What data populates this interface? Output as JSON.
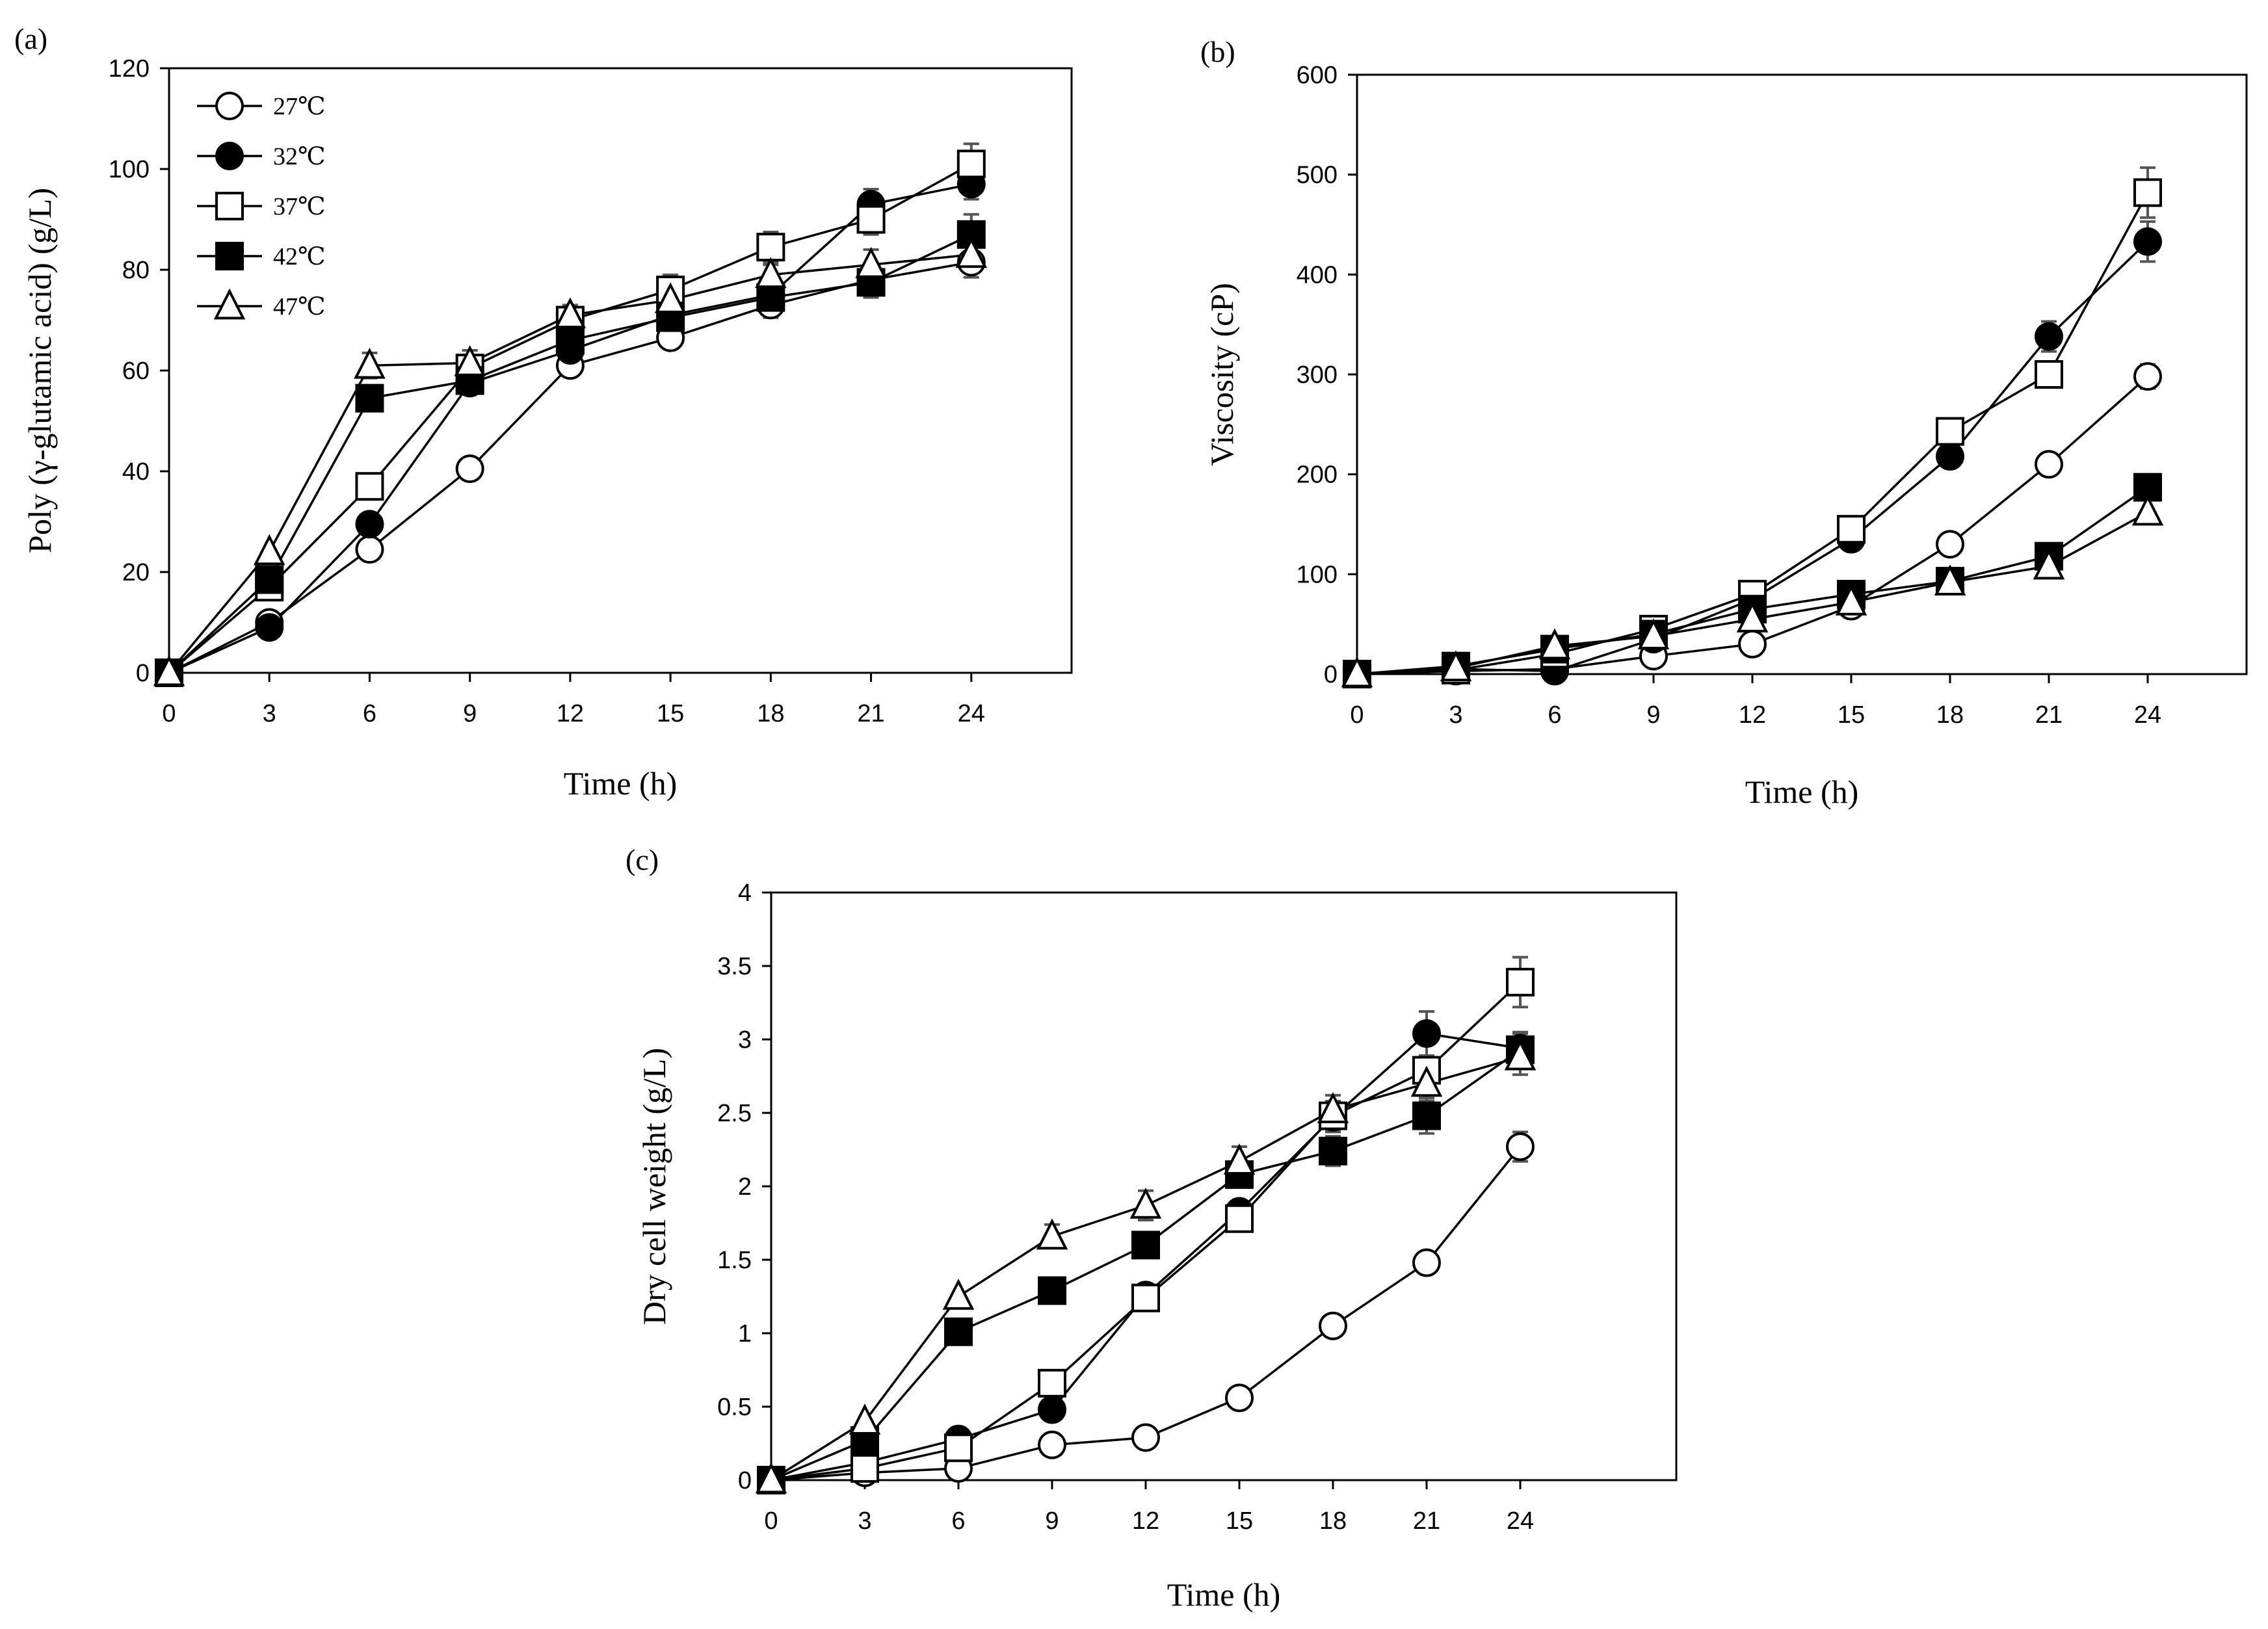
{
  "chart_data": [
    {
      "panel": "(a)",
      "type": "line",
      "title": "",
      "xlabel": "Time (h)",
      "ylabel": "Poly (γ-glutamic acid)  (g/L)",
      "x": [
        0,
        3,
        6,
        9,
        12,
        15,
        18,
        21,
        24
      ],
      "xticks": [
        "0",
        "3",
        "6",
        "9",
        "12",
        "15",
        "18",
        "21",
        "24"
      ],
      "yticks": [
        "0",
        "20",
        "40",
        "60",
        "80",
        "100",
        "120"
      ],
      "xlim": [
        0,
        27
      ],
      "ylim": [
        0,
        120
      ],
      "grid": false,
      "legend": "top-left",
      "series": [
        {
          "name": "27℃",
          "marker": "circle-open",
          "values": [
            0,
            10,
            24.5,
            40.5,
            61,
            66.5,
            73,
            78,
            81.5
          ],
          "errors": [
            0,
            0,
            0,
            0,
            0,
            2,
            2.5,
            3,
            3
          ]
        },
        {
          "name": "32℃",
          "marker": "circle-filled",
          "values": [
            0,
            9,
            29.5,
            57.5,
            64,
            71,
            75,
            93,
            97
          ],
          "errors": [
            0,
            0,
            0,
            1.5,
            2,
            2,
            2,
            3,
            3
          ]
        },
        {
          "name": "37℃",
          "marker": "square-open",
          "values": [
            0,
            17,
            37,
            60.5,
            70,
            76,
            84.5,
            90,
            101
          ],
          "errors": [
            0,
            0,
            0,
            2,
            2,
            3,
            3,
            3,
            4
          ]
        },
        {
          "name": "42℃",
          "marker": "square-filled",
          "values": [
            0,
            18.5,
            54.5,
            58,
            66,
            70.5,
            74.5,
            77.5,
            87
          ],
          "errors": [
            0,
            0,
            1.5,
            2,
            2,
            2,
            2,
            3,
            4
          ]
        },
        {
          "name": "47℃",
          "marker": "triangle-open",
          "values": [
            0,
            24,
            61,
            61.5,
            71,
            74,
            79,
            81,
            83
          ],
          "errors": [
            0,
            0,
            2.5,
            2.5,
            2,
            2,
            2,
            3,
            3
          ]
        }
      ]
    },
    {
      "panel": "(b)",
      "type": "line",
      "title": "",
      "xlabel": "Time (h)",
      "ylabel": "Viscosity (cP)",
      "x": [
        0,
        3,
        6,
        9,
        12,
        15,
        18,
        21,
        24
      ],
      "xticks": [
        "0",
        "3",
        "6",
        "9",
        "12",
        "15",
        "18",
        "21",
        "24"
      ],
      "yticks": [
        "0",
        "100",
        "200",
        "300",
        "400",
        "500",
        "600"
      ],
      "xlim": [
        0,
        27
      ],
      "ylim": [
        0,
        600
      ],
      "grid": false,
      "legend": "none",
      "series": [
        {
          "name": "27℃",
          "marker": "circle-open",
          "values": [
            0,
            3,
            5,
            18,
            30,
            68,
            130,
            210,
            298
          ],
          "errors": [
            0,
            0,
            0,
            0,
            0,
            0,
            0,
            0,
            12
          ]
        },
        {
          "name": "32℃",
          "marker": "circle-filled",
          "values": [
            0,
            5,
            3,
            35,
            75,
            135,
            218,
            338,
            433
          ],
          "errors": [
            0,
            0,
            0,
            0,
            0,
            0,
            0,
            15,
            20
          ]
        },
        {
          "name": "37℃",
          "marker": "square-open",
          "values": [
            0,
            4,
            20,
            45,
            80,
            145,
            243,
            300,
            482
          ],
          "errors": [
            0,
            0,
            0,
            0,
            0,
            0,
            0,
            0,
            25
          ]
        },
        {
          "name": "42℃",
          "marker": "square-filled",
          "values": [
            0,
            8,
            25,
            40,
            65,
            80,
            93,
            118,
            187
          ],
          "errors": [
            0,
            0,
            0,
            0,
            0,
            0,
            0,
            0,
            0
          ]
        },
        {
          "name": "47℃",
          "marker": "triangle-open",
          "values": [
            0,
            6,
            28,
            38,
            55,
            72,
            92,
            108,
            162
          ],
          "errors": [
            0,
            0,
            0,
            0,
            0,
            0,
            0,
            0,
            0
          ]
        }
      ]
    },
    {
      "panel": "(c)",
      "type": "line",
      "title": "",
      "xlabel": "Time (h)",
      "ylabel": "Dry cell weight  (g/L)",
      "x": [
        0,
        3,
        6,
        9,
        12,
        15,
        18,
        21,
        24
      ],
      "xticks": [
        "0",
        "3",
        "6",
        "9",
        "12",
        "15",
        "18",
        "21",
        "24"
      ],
      "yticks": [
        "0",
        "0.5",
        "1",
        "1.5",
        "2",
        "2.5",
        "3",
        "3.5",
        "4"
      ],
      "xlim": [
        0,
        29
      ],
      "ylim": [
        0,
        4
      ],
      "grid": false,
      "legend": "none",
      "series": [
        {
          "name": "27℃",
          "marker": "circle-open",
          "values": [
            0,
            0.05,
            0.08,
            0.24,
            0.29,
            0.56,
            1.05,
            1.48,
            2.27
          ],
          "errors": [
            0,
            0,
            0,
            0,
            0,
            0,
            0,
            0,
            0.1
          ]
        },
        {
          "name": "32℃",
          "marker": "circle-filled",
          "values": [
            0,
            0.12,
            0.28,
            0.48,
            1.26,
            1.83,
            2.47,
            3.04,
            2.94
          ],
          "errors": [
            0,
            0,
            0,
            0,
            0,
            0,
            0.1,
            0.15,
            0.1
          ]
        },
        {
          "name": "37℃",
          "marker": "square-open",
          "values": [
            0,
            0.08,
            0.22,
            0.66,
            1.24,
            1.78,
            2.48,
            2.79,
            3.39
          ],
          "errors": [
            0,
            0,
            0,
            0,
            0,
            0,
            0.1,
            0.1,
            0.17
          ]
        },
        {
          "name": "42℃",
          "marker": "square-filled",
          "values": [
            0,
            0.27,
            1.01,
            1.29,
            1.6,
            2.08,
            2.24,
            2.48,
            2.93
          ],
          "errors": [
            0,
            0,
            0,
            0,
            0,
            0,
            0.1,
            0.12,
            0.12
          ]
        },
        {
          "name": "47℃",
          "marker": "triangle-open",
          "values": [
            0,
            0.4,
            1.25,
            1.66,
            1.87,
            2.17,
            2.52,
            2.7,
            2.88
          ],
          "errors": [
            0,
            0,
            0,
            0.08,
            0.1,
            0.1,
            0.1,
            0.12,
            0.12
          ]
        }
      ]
    }
  ]
}
